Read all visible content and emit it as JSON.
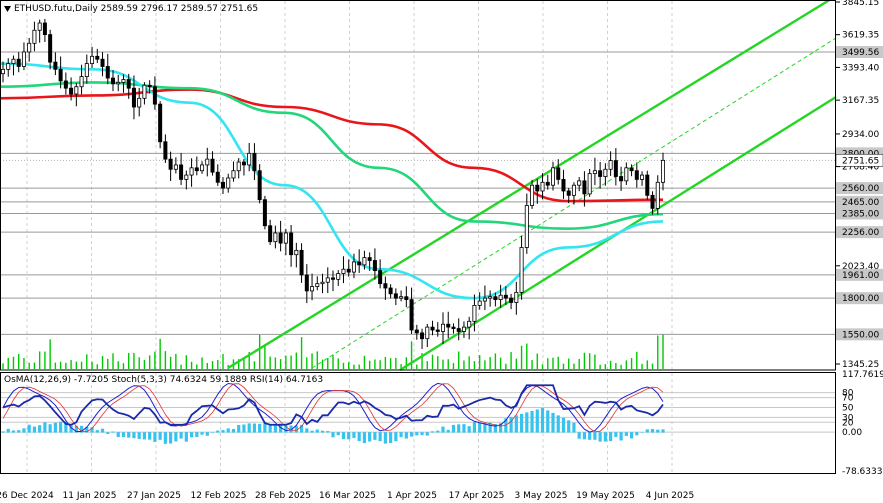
{
  "header": {
    "symbol": "ETHUSD.futu,Daily",
    "open": "2589.59",
    "high": "2796.17",
    "low": "2589.57",
    "close": "2751.65"
  },
  "indicator_header": {
    "osma": "OsMA(12,26,9) -7.7205",
    "stoch": "Stoch(5,3,3) 74.6324 59.1889",
    "rsi": "RSI(14) 64.7163"
  },
  "colors": {
    "candle": "#000000",
    "volume": "#00c800",
    "grid": "#d0d0d0",
    "level": "#9a9a9a",
    "ma_red": "#e8161b",
    "ma_green": "#22d67a",
    "ma_cyan": "#33e5f0",
    "channel": "#23d623",
    "osma": "#37c3f0",
    "stoch_main": "#1f1fcc",
    "stoch_signal": "#e03030",
    "rsi": "#1a2aa8",
    "price_label_bg": "#ffffff"
  },
  "chart_data": [
    {
      "type": "candlestick",
      "title": "ETHUSD.futu,Daily",
      "x_ticks": [
        "26 Dec 2024",
        "11 Jan 2025",
        "27 Jan 2025",
        "12 Feb 2025",
        "28 Feb 2025",
        "16 Mar 2025",
        "1 Apr 2025",
        "17 Apr 2025",
        "3 May 2025",
        "19 May 2025",
        "4 Jun 2025"
      ],
      "y_range": [
        1345.25,
        3845.15
      ],
      "y_ticks": [
        "3845.15",
        "3619.35",
        "3393.40",
        "3167.35",
        "2934.00",
        "2708.40",
        "2023.40",
        "1345.25"
      ],
      "levels": [
        "3499.56",
        "2800.00",
        "2560.00",
        "2465.00",
        "2385.00",
        "2256.00",
        "1961.00",
        "1800.00",
        "1550.00"
      ],
      "current_price": "2751.65",
      "close_series": [
        3380,
        3420,
        3450,
        3400,
        3500,
        3560,
        3650,
        3700,
        3620,
        3430,
        3380,
        3300,
        3250,
        3210,
        3260,
        3330,
        3420,
        3470,
        3450,
        3400,
        3320,
        3280,
        3290,
        3310,
        3250,
        3120,
        3180,
        3270,
        3260,
        3140,
        2880,
        2760,
        2690,
        2720,
        2620,
        2650,
        2700,
        2680,
        2720,
        2760,
        2670,
        2600,
        2560,
        2630,
        2680,
        2740,
        2720,
        2800,
        2680,
        2480,
        2300,
        2190,
        2250,
        2180,
        2250,
        2100,
        2130,
        1960,
        1850,
        1880,
        1900,
        1910,
        1940,
        1930,
        1970,
        2000,
        1980,
        2050,
        2030,
        2080,
        2060,
        1990,
        1900,
        1870,
        1830,
        1800,
        1810,
        1790,
        1580,
        1560,
        1520,
        1600,
        1580,
        1570,
        1620,
        1600,
        1590,
        1570,
        1600,
        1640,
        1750,
        1780,
        1800,
        1810,
        1790,
        1820,
        1800,
        1770,
        1840,
        2150,
        2440,
        2580,
        2540,
        2600,
        2580,
        2700,
        2620,
        2540,
        2510,
        2580,
        2610,
        2520,
        2660,
        2680,
        2640,
        2690,
        2750,
        2640,
        2610,
        2700,
        2680,
        2620,
        2650,
        2510,
        2420,
        2600,
        2751.65
      ],
      "moving_averages": [
        {
          "name": "MA-red",
          "values": [
            3180,
            3200,
            3240,
            3120,
            3000,
            2700,
            2470,
            2480
          ]
        },
        {
          "name": "MA-green",
          "values": [
            3260,
            3290,
            3250,
            3080,
            2700,
            2330,
            2280,
            2380
          ]
        },
        {
          "name": "MA-cyan",
          "values": [
            3420,
            3380,
            3150,
            2580,
            2000,
            1800,
            2150,
            2330
          ]
        }
      ]
    },
    {
      "type": "oscillator",
      "series_labels": [
        "OsMA(12,26,9) -7.7205",
        "Stoch(5,3,3) 74.6324 59.1889",
        "RSI(14) 64.7163"
      ],
      "y_labels": [
        "117.7619",
        "80",
        "70",
        "50",
        "30",
        "20",
        "0.00",
        "-78.6333"
      ],
      "stoch_current": 74.6324,
      "stoch_signal_current": 59.1889,
      "rsi_current": 64.7163,
      "osma_current": -7.7205
    }
  ]
}
